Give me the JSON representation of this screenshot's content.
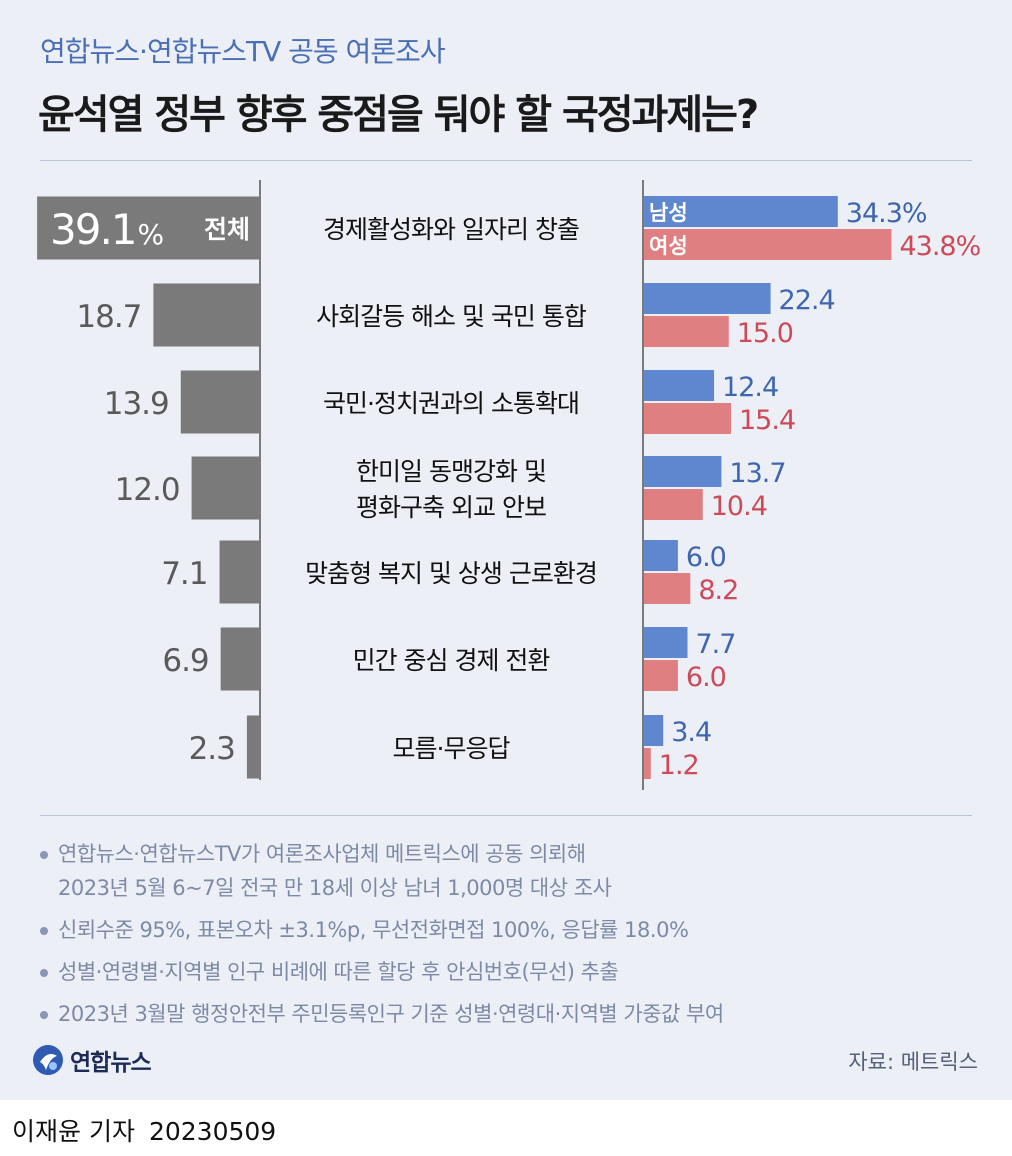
{
  "header": {
    "subtitle": "연합뉴스·연합뉴스TV 공동 여론조사",
    "title": "윤석열 정부 향후 중점을 둬야 할 국정과제는?"
  },
  "chart_data": {
    "type": "bar",
    "categories": [
      [
        "경제활성화와 일자리 창출"
      ],
      [
        "사회갈등 해소 및 국민 통합"
      ],
      [
        "국민·정치권과의 소통확대"
      ],
      [
        "한미일 동맹강화 및",
        "평화구축 외교 안보"
      ],
      [
        "맞춤형 복지 및 상생 근로환경"
      ],
      [
        "민간 중심 경제 전환"
      ],
      [
        "모름·무응답"
      ]
    ],
    "total": {
      "values": [
        39.1,
        18.7,
        13.9,
        12.0,
        7.1,
        6.9,
        2.3
      ],
      "labels": [
        "39.1",
        "18.7",
        "13.9",
        "12.0",
        "7.1",
        "6.9",
        "2.3"
      ],
      "first_unit": "%",
      "inline_label": "전체",
      "color": "#7a7a7a"
    },
    "series": [
      {
        "name": "남성",
        "values": [
          34.3,
          22.4,
          12.4,
          13.7,
          6.0,
          7.7,
          3.4
        ],
        "labels": [
          "34.3%",
          "22.4",
          "12.4",
          "13.7",
          "6.0",
          "7.7",
          "3.4"
        ],
        "color": "#5f87cf",
        "text_color": "#3f66ae"
      },
      {
        "name": "여성",
        "values": [
          43.8,
          15.0,
          15.4,
          10.4,
          8.2,
          6.0,
          1.2
        ],
        "labels": [
          "43.8%",
          "15.0",
          "15.4",
          "10.4",
          "8.2",
          "6.0",
          "1.2"
        ],
        "color": "#e07f82",
        "text_color": "#cd4a59"
      }
    ]
  },
  "notes": [
    [
      "연합뉴스·연합뉴스TV가 여론조사업체 메트릭스에 공동 의뢰해",
      "2023년 5월 6~7일 전국 만 18세 이상 남녀 1,000명 대상 조사"
    ],
    [
      "신뢰수준 95%, 표본오차 ±3.1%p, 무선전화면접 100%, 응답률 18.0%"
    ],
    [
      "성별·연령별·지역별 인구 비례에 따른 할당 후 안심번호(무선) 추출"
    ],
    [
      "2023년 3월말 행정안전부 주민등록인구 기준 성별·연령대·지역별 가중값 부여"
    ]
  ],
  "footer": {
    "logo_text": "연합뉴스",
    "source": "자료: 메트릭스",
    "byline": "이재윤 기자",
    "date": "20230509"
  },
  "colors": {
    "background": "#eceff6",
    "accent": "#4a6fb5"
  }
}
